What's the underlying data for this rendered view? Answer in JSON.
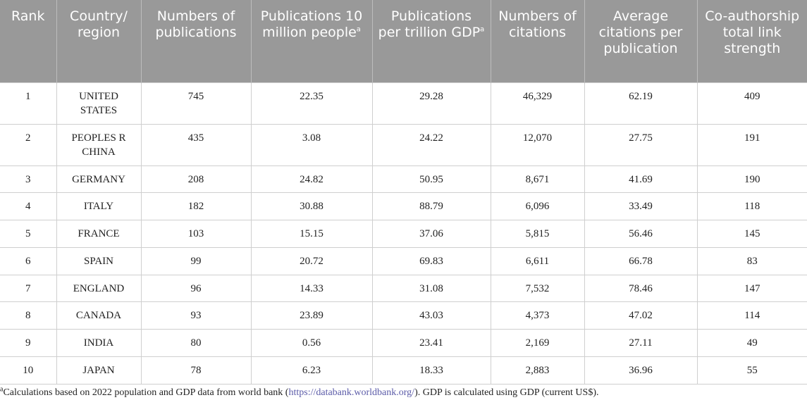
{
  "table": {
    "headers": [
      {
        "text": "Rank",
        "sup": ""
      },
      {
        "text": "Country/ region",
        "sup": ""
      },
      {
        "text": "Numbers of publications",
        "sup": ""
      },
      {
        "text": "Publications 10 million people",
        "sup": "a"
      },
      {
        "text": "Publications per trillion GDP",
        "sup": "a"
      },
      {
        "text": "Numbers of citations",
        "sup": ""
      },
      {
        "text": "Average citations per publication",
        "sup": ""
      },
      {
        "text": "Co-authorship total link strength",
        "sup": ""
      }
    ],
    "rows": [
      [
        "1",
        "UNITED STATES",
        "745",
        "22.35",
        "29.28",
        "46,329",
        "62.19",
        "409"
      ],
      [
        "2",
        "PEOPLES R CHINA",
        "435",
        "3.08",
        "24.22",
        "12,070",
        "27.75",
        "191"
      ],
      [
        "3",
        "GERMANY",
        "208",
        "24.82",
        "50.95",
        "8,671",
        "41.69",
        "190"
      ],
      [
        "4",
        "ITALY",
        "182",
        "30.88",
        "88.79",
        "6,096",
        "33.49",
        "118"
      ],
      [
        "5",
        "FRANCE",
        "103",
        "15.15",
        "37.06",
        "5,815",
        "56.46",
        "145"
      ],
      [
        "6",
        "SPAIN",
        "99",
        "20.72",
        "69.83",
        "6,611",
        "66.78",
        "83"
      ],
      [
        "7",
        "ENGLAND",
        "96",
        "14.33",
        "31.08",
        "7,532",
        "78.46",
        "147"
      ],
      [
        "8",
        "CANADA",
        "93",
        "23.89",
        "43.03",
        "4,373",
        "47.02",
        "114"
      ],
      [
        "9",
        "INDIA",
        "80",
        "0.56",
        "23.41",
        "2,169",
        "27.11",
        "49"
      ],
      [
        "10",
        "JAPAN",
        "78",
        "6.23",
        "18.33",
        "2,883",
        "36.96",
        "55"
      ]
    ]
  },
  "footnote": {
    "marker": "a",
    "text_before": "Calculations based on 2022 population and GDP data from world bank (",
    "link": "https://databank.worldbank.org/",
    "text_after": "). GDP is calculated using GDP (current US$)."
  }
}
